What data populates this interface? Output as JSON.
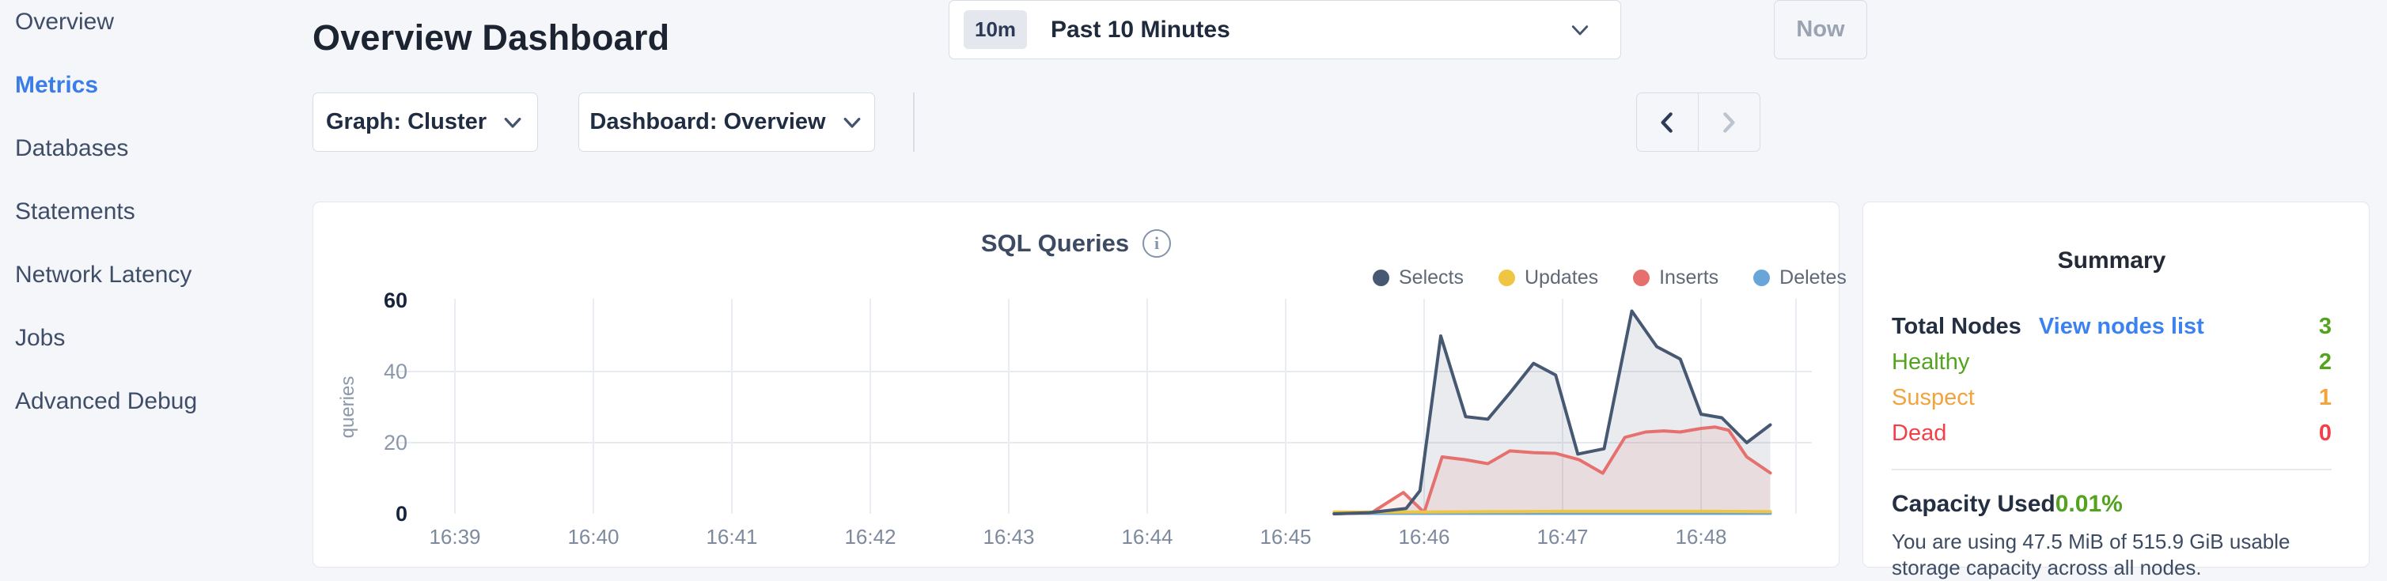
{
  "sidebar": {
    "items": [
      {
        "label": "Overview",
        "active": false
      },
      {
        "label": "Metrics",
        "active": true
      },
      {
        "label": "Databases",
        "active": false
      },
      {
        "label": "Statements",
        "active": false
      },
      {
        "label": "Network Latency",
        "active": false
      },
      {
        "label": "Jobs",
        "active": false
      },
      {
        "label": "Advanced Debug",
        "active": false
      }
    ]
  },
  "header": {
    "title": "Overview Dashboard"
  },
  "controls": {
    "graph_dropdown": "Graph: Cluster",
    "dashboard_dropdown": "Dashboard: Overview",
    "time_badge": "10m",
    "time_range": "Past 10 Minutes",
    "now_label": "Now"
  },
  "chart_data": {
    "type": "area",
    "title": "SQL Queries",
    "ylabel": "queries",
    "x_tick_labels": [
      "16:39",
      "16:40",
      "16:41",
      "16:42",
      "16:43",
      "16:44",
      "16:45",
      "16:46",
      "16:47",
      "16:48"
    ],
    "x_unit": "minutes after 16:39",
    "y_ticks": [
      0,
      20,
      40,
      60
    ],
    "ylim": [
      0,
      60
    ],
    "grid": true,
    "legend_position": "top-right",
    "series": [
      {
        "name": "Selects",
        "color": "#475872",
        "fill": "rgba(71,88,114,0.12)",
        "points": [
          [
            6.35,
            0
          ],
          [
            6.6,
            0.3
          ],
          [
            6.87,
            1.5
          ],
          [
            6.97,
            6.5
          ],
          [
            7.12,
            50
          ],
          [
            7.3,
            27.3
          ],
          [
            7.46,
            26.6
          ],
          [
            7.62,
            34
          ],
          [
            7.79,
            42.3
          ],
          [
            7.95,
            39
          ],
          [
            8.11,
            16.8
          ],
          [
            8.3,
            18.3
          ],
          [
            8.5,
            57
          ],
          [
            8.68,
            47
          ],
          [
            8.85,
            43.5
          ],
          [
            9.0,
            28
          ],
          [
            9.15,
            27
          ],
          [
            9.33,
            20
          ],
          [
            9.5,
            25
          ]
        ]
      },
      {
        "name": "Updates",
        "color": "#eec643",
        "fill": null,
        "points": [
          [
            6.35,
            0.5
          ],
          [
            7.0,
            0.5
          ],
          [
            7.5,
            0.6
          ],
          [
            8.0,
            0.7
          ],
          [
            8.5,
            0.7
          ],
          [
            9.0,
            0.7
          ],
          [
            9.5,
            0.6
          ]
        ]
      },
      {
        "name": "Inserts",
        "color": "#e5706e",
        "fill": "rgba(229,112,110,0.12)",
        "points": [
          [
            6.35,
            0
          ],
          [
            6.62,
            0.3
          ],
          [
            6.85,
            6
          ],
          [
            7.0,
            0.4
          ],
          [
            7.13,
            16
          ],
          [
            7.3,
            15.2
          ],
          [
            7.46,
            14.1
          ],
          [
            7.62,
            17.7
          ],
          [
            7.79,
            17.2
          ],
          [
            7.95,
            17
          ],
          [
            8.12,
            15.2
          ],
          [
            8.29,
            11.4
          ],
          [
            8.45,
            21.5
          ],
          [
            8.6,
            23
          ],
          [
            8.73,
            23.3
          ],
          [
            8.85,
            23
          ],
          [
            9.0,
            24
          ],
          [
            9.1,
            24.4
          ],
          [
            9.2,
            23.5
          ],
          [
            9.33,
            16
          ],
          [
            9.5,
            11.5
          ]
        ]
      },
      {
        "name": "Deletes",
        "color": "#69a5d8",
        "fill": null,
        "points": [
          [
            6.35,
            0.15
          ],
          [
            9.5,
            0.15
          ]
        ]
      }
    ]
  },
  "summary": {
    "title": "Summary",
    "total_nodes_label": "Total Nodes",
    "view_nodes_link": "View nodes list",
    "total_nodes_value": "3",
    "rows": [
      {
        "label": "Healthy",
        "value": "2",
        "color": "#53a31e"
      },
      {
        "label": "Suspect",
        "value": "1",
        "color": "#f2a33b"
      },
      {
        "label": "Dead",
        "value": "0",
        "color": "#f1404a"
      }
    ],
    "capacity_label": "Capacity Used",
    "capacity_value": "0.01%",
    "capacity_description": "You are using 47.5 MiB of 515.9 GiB usable storage capacity across all nodes."
  },
  "colors": {
    "accent_blue": "#3a7de8",
    "link_blue": "#3b82f0",
    "green": "#53a31e",
    "orange": "#f2a33b",
    "red": "#f1404a",
    "series_selects": "#475872",
    "series_updates": "#eec643",
    "series_inserts": "#e5706e",
    "series_deletes": "#69a5d8",
    "page_bg": "#f4f6fa"
  }
}
